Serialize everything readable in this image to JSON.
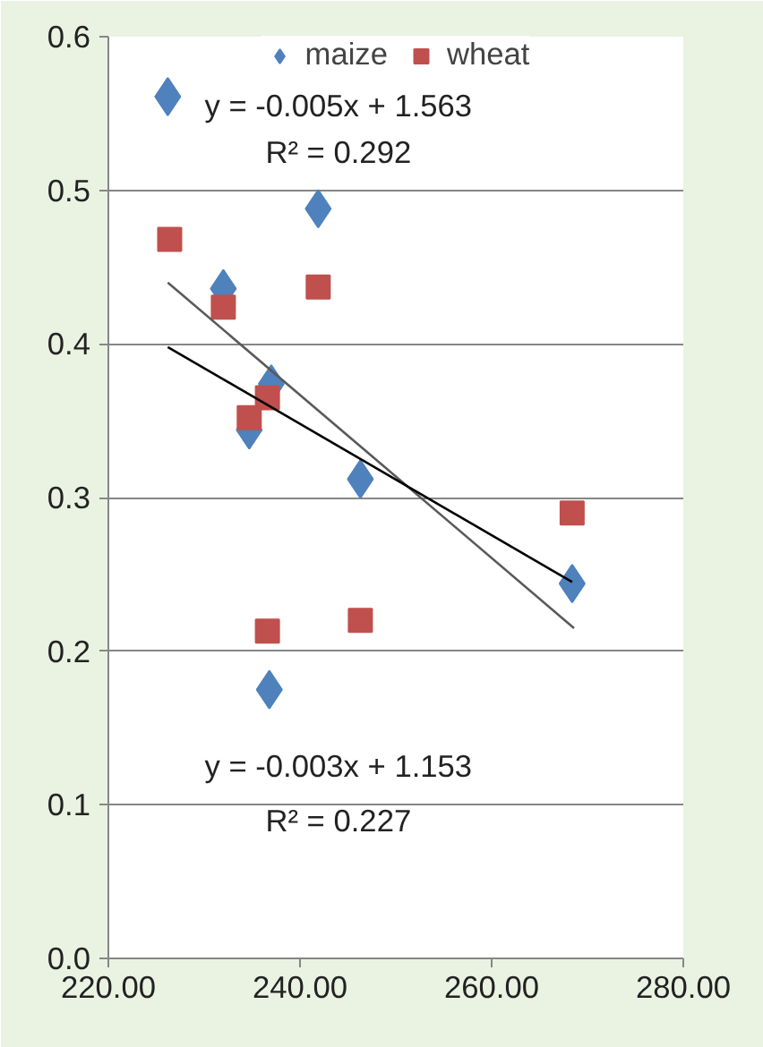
{
  "chart_data": {
    "type": "scatter",
    "xlim": [
      220,
      280
    ],
    "ylim": [
      0,
      0.6
    ],
    "xticks": [
      {
        "value": 220,
        "label": "220.00"
      },
      {
        "value": 240,
        "label": "240.00"
      },
      {
        "value": 260,
        "label": "260.00"
      },
      {
        "value": 280,
        "label": "280.00"
      }
    ],
    "yticks": [
      {
        "value": 0,
        "label": "0.0"
      },
      {
        "value": 0.1,
        "label": "0.1"
      },
      {
        "value": 0.2,
        "label": "0.2"
      },
      {
        "value": 0.3,
        "label": "0.3"
      },
      {
        "value": 0.4,
        "label": "0.4"
      },
      {
        "value": 0.5,
        "label": "0.5"
      },
      {
        "value": 0.6,
        "label": "0.6"
      }
    ],
    "grid": "y",
    "legend": "top",
    "series": [
      {
        "name": "maize",
        "color": "#4f81bd",
        "marker": "diamond",
        "x": [
          226.2,
          241.9,
          232.0,
          237.0,
          234.7,
          246.3,
          268.4,
          236.8
        ],
        "values": [
          0.561,
          0.488,
          0.436,
          0.374,
          0.344,
          0.312,
          0.244,
          0.175
        ]
      },
      {
        "name": "wheat",
        "color": "#c0504d",
        "marker": "square",
        "x": [
          226.4,
          232.0,
          241.9,
          234.7,
          236.6,
          236.6,
          246.3,
          268.4
        ],
        "values": [
          0.468,
          0.424,
          0.437,
          0.352,
          0.365,
          0.213,
          0.22,
          0.29
        ]
      },
      {
        "type": "line",
        "color": "#595959",
        "x": [
          226.2,
          268.6
        ],
        "values": [
          0.44,
          0.215
        ]
      },
      {
        "type": "line",
        "color": "#000000",
        "x": [
          226.2,
          268.4
        ],
        "values": [
          0.398,
          0.245
        ]
      }
    ],
    "annotations": [
      "y = -0.005x + 1.563",
      "R² = 0.292",
      "y = -0.003x + 1.153",
      "R² = 0.227"
    ]
  }
}
